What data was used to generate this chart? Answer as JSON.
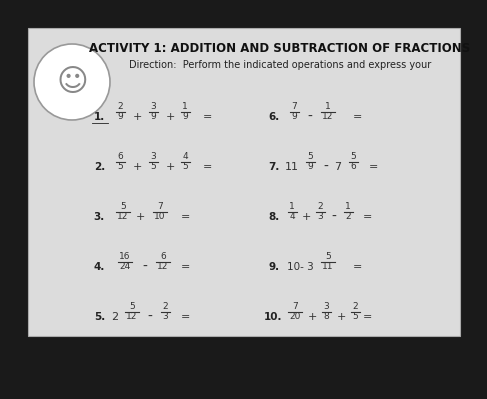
{
  "bg_color": "#1a1a1a",
  "panel_color": "#dcdcdc",
  "title": "ACTIVITY 1: ADDITION AND SUBTRACTION OF FRACTIONS",
  "direction": "Direction:  Perform the indicated operations and express your",
  "title_color": "#111111",
  "text_color": "#222222",
  "frac_color": "#333333",
  "num_color": "#222222"
}
